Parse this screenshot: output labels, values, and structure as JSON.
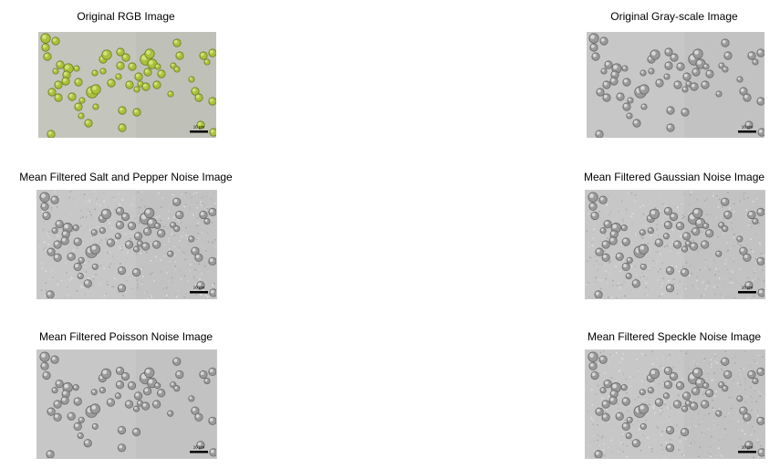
{
  "figure": {
    "panels": [
      {
        "id": "rgb",
        "title": "Original RGB Image",
        "variant": "color",
        "scale_bar_label": "10 µm"
      },
      {
        "id": "gray",
        "title": "Original Gray-scale Image",
        "variant": "gray",
        "scale_bar_label": "10 µm"
      },
      {
        "id": "sp",
        "title": "Mean Filtered Salt and Pepper Noise Image",
        "variant": "noisy",
        "scale_bar_label": "10 µm"
      },
      {
        "id": "gauss",
        "title": "Mean Filtered Gaussian Noise Image",
        "variant": "noisy",
        "scale_bar_label": "10 µm"
      },
      {
        "id": "poisson",
        "title": "Mean Filtered Poisson Noise Image",
        "variant": "smooth",
        "scale_bar_label": "10 µm"
      },
      {
        "id": "speckle",
        "title": "Mean Filtered Speckle Noise Image",
        "variant": "noisy",
        "scale_bar_label": "10 µm"
      }
    ],
    "colors": {
      "rgb_background": "#c4c5bd",
      "rgb_cell": "#a9c23a",
      "gray_background": "#c7c7c7",
      "gray_cell": "#9a9a9a",
      "scale_bar": "#000000"
    }
  }
}
